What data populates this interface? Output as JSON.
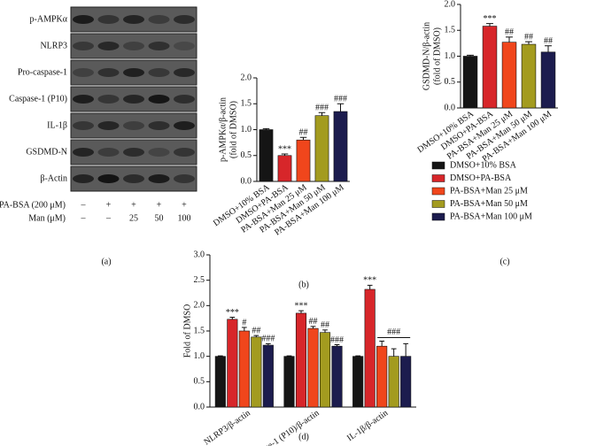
{
  "blot": {
    "panel_label": "(a)",
    "rows": [
      "p-AMPKα",
      "NLRP3",
      "Pro-caspase-1",
      "Caspase-1 (P10)",
      "IL-1β",
      "GSDMD-N",
      "β-Actin"
    ],
    "conditions": [
      {
        "name": "PA-BSA (200 μM)",
        "marks": [
          "–",
          "+",
          "+",
          "+",
          "+"
        ]
      },
      {
        "name": "Man (μM)",
        "marks": [
          "–",
          "–",
          "25",
          "50",
          "100"
        ]
      }
    ]
  },
  "chart_data": [
    {
      "type": "bar",
      "panel_label": "(b)",
      "ylabel": [
        "p-AMPKα/β-actin",
        "(fold of DMSO)"
      ],
      "categories": [
        "DMSO+10% BSA",
        "DMSO+PA-BSA",
        "PA-BSA+Man 25 μM",
        "PA-BSA+Man 50 μM",
        "PA-BSA+Man 100 μM"
      ],
      "values": [
        1.0,
        0.5,
        0.8,
        1.27,
        1.35
      ],
      "errors": [
        0.02,
        0.03,
        0.05,
        0.06,
        0.15
      ],
      "annotations": [
        null,
        "***",
        "##",
        "###",
        "###"
      ],
      "colors": [
        "#151515",
        "#d7262a",
        "#f0461c",
        "#a39b1f",
        "#1c1c4e"
      ],
      "ylim": [
        0,
        2
      ],
      "yticks": [
        {
          "value": 0,
          "label": "0.0"
        },
        0.5,
        {
          "value": 1,
          "label": "1.0"
        },
        1.5,
        {
          "value": 2,
          "label": "2.0"
        }
      ]
    },
    {
      "type": "bar",
      "panel_label": "(c)",
      "ylabel": [
        "GSDMD-N/β-actin",
        "(fold of DMSO)"
      ],
      "categories": [
        "DMSO+10% BSA",
        "DMSO+PA-BSA",
        "PA-BSA+Man 25 μM",
        "PA-BSA+Man 50 μM",
        "PA-BSA+Man 100 μM"
      ],
      "values": [
        1.0,
        1.58,
        1.27,
        1.23,
        1.08
      ],
      "errors": [
        0.02,
        0.05,
        0.1,
        0.05,
        0.12
      ],
      "annotations": [
        null,
        "***",
        "##",
        "##",
        "##"
      ],
      "colors": [
        "#151515",
        "#d7262a",
        "#f0461c",
        "#a39b1f",
        "#1c1c4e"
      ],
      "legend": true,
      "ylim": [
        0,
        2
      ],
      "yticks": [
        {
          "value": 0,
          "label": "0.0"
        },
        0.5,
        {
          "value": 1,
          "label": "1.0"
        },
        1.5,
        {
          "value": 2,
          "label": "2.0"
        }
      ]
    },
    {
      "type": "grouped_bar",
      "panel_label": "(d)",
      "ylabel": "Fold of DMSO",
      "categories": [
        "NLRP3/β-actin",
        "Caspase-1 (P10)/β-actin",
        "IL-1β/β-actin"
      ],
      "series": [
        {
          "name": "DMSO+10% BSA",
          "color": "#151515",
          "values": [
            1.0,
            1.0,
            1.0
          ],
          "errors": [
            0.01,
            0.01,
            0.01
          ],
          "annotations": [
            null,
            null,
            null
          ]
        },
        {
          "name": "DMSO+PA-BSA",
          "color": "#d7262a",
          "values": [
            1.73,
            1.85,
            2.32
          ],
          "errors": [
            0.04,
            0.05,
            0.08
          ],
          "annotations": [
            "***",
            "***",
            "***"
          ]
        },
        {
          "name": "PA-BSA+Man 25 μM",
          "color": "#f0461c",
          "values": [
            1.5,
            1.55,
            1.2
          ],
          "errors": [
            0.07,
            0.04,
            0.1
          ],
          "annotations": [
            "#",
            "##",
            null
          ]
        },
        {
          "name": "PA-BSA+Man 50 μM",
          "color": "#a39b1f",
          "values": [
            1.38,
            1.47,
            1.0
          ],
          "errors": [
            0.03,
            0.05,
            0.15
          ],
          "annotations": [
            "##",
            "##",
            null
          ]
        },
        {
          "name": "PA-BSA+Man 100 μM",
          "color": "#1c1c4e",
          "values": [
            1.22,
            1.2,
            1.0
          ],
          "errors": [
            0.03,
            0.03,
            0.25
          ],
          "annotations": [
            "###",
            "###",
            null
          ]
        }
      ],
      "bracket": {
        "label": "###",
        "category": 2,
        "from": 2,
        "to": 4
      },
      "ylim": [
        0,
        3
      ],
      "yticks": [
        {
          "value": 0,
          "label": "0.0"
        },
        0.5,
        {
          "value": 1,
          "label": "1.0"
        },
        1.5,
        {
          "value": 2,
          "label": "2.0"
        },
        2.5,
        {
          "value": 3,
          "label": "3.0"
        }
      ]
    }
  ]
}
